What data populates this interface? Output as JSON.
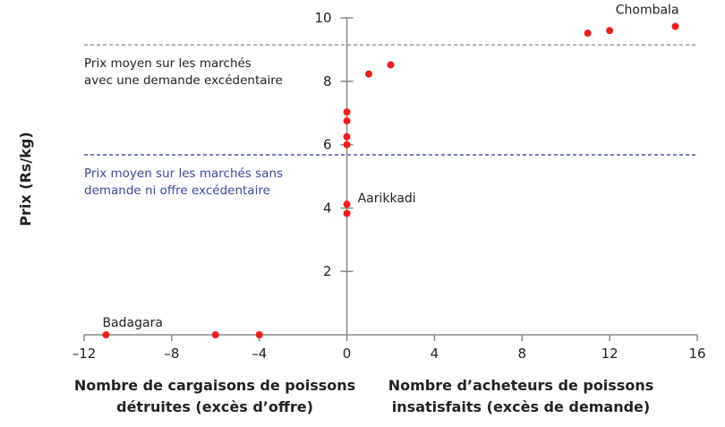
{
  "chart_data": {
    "type": "scatter",
    "xlabel_left": [
      "Nombre de cargaisons de poissons",
      "détruites (excès d’offre)"
    ],
    "xlabel_right": [
      "Nombre d’acheteurs de poissons",
      "insatisfaits (excès de demande)"
    ],
    "ylabel": "Prix (Rs/kg)",
    "xlim": [
      -12,
      16
    ],
    "ylim": [
      0,
      10
    ],
    "xticks": [
      -12,
      -8,
      -4,
      0,
      4,
      8,
      12,
      16
    ],
    "xtick_labels": [
      "–12",
      "–8",
      "–4",
      "0",
      "4",
      "8",
      "12",
      "16"
    ],
    "yticks": [
      2,
      4,
      6,
      8,
      10
    ],
    "grid": false,
    "point_color": "#e8201f",
    "points": [
      {
        "x": -11,
        "y": 0,
        "label": "Badagara"
      },
      {
        "x": -6,
        "y": 0
      },
      {
        "x": -4,
        "y": 0
      },
      {
        "x": 0,
        "y": 7.03
      },
      {
        "x": 0,
        "y": 6.75
      },
      {
        "x": 0,
        "y": 6.25
      },
      {
        "x": 0,
        "y": 6.0
      },
      {
        "x": 0,
        "y": 4.12,
        "label": "Aarikkadi"
      },
      {
        "x": 0,
        "y": 3.83
      },
      {
        "x": 1,
        "y": 8.23
      },
      {
        "x": 2,
        "y": 8.52
      },
      {
        "x": 11,
        "y": 9.52
      },
      {
        "x": 12,
        "y": 9.6
      },
      {
        "x": 15,
        "y": 9.73,
        "label": "Chombala"
      }
    ],
    "reference_lines": [
      {
        "y": 9.15,
        "color": "#8a8a8a",
        "text": [
          "Prix moyen sur les marchés",
          "avec une demande excédentaire"
        ],
        "text_color": "#222222"
      },
      {
        "y": 5.68,
        "color": "#3a4a9a",
        "text": [
          "Prix moyen sur les marchés sans",
          "demande ni offre excédentaire"
        ],
        "text_color": "#3a4a9a"
      }
    ]
  }
}
